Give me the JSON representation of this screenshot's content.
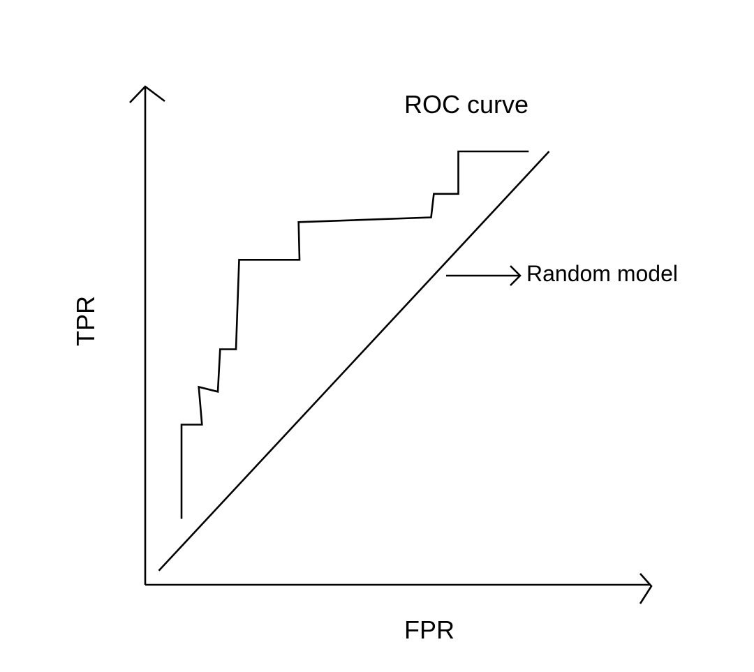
{
  "chart_data": {
    "type": "line",
    "xlabel": "FPR",
    "ylabel": "TPR",
    "xlim": [
      0,
      1
    ],
    "ylim": [
      0,
      1
    ],
    "grid": false,
    "legend": "none",
    "series": [
      {
        "name": "ROC curve",
        "x": [
          0.08,
          0.08,
          0.125,
          0.118,
          0.16,
          0.165,
          0.2,
          0.207,
          0.34,
          0.338,
          0.63,
          0.636,
          0.69,
          0.69,
          0.845
        ],
        "y": [
          0.14,
          0.34,
          0.34,
          0.42,
          0.41,
          0.5,
          0.5,
          0.69,
          0.69,
          0.77,
          0.78,
          0.83,
          0.83,
          0.92,
          0.92
        ]
      },
      {
        "name": "Random model",
        "x": [
          0.03,
          0.89
        ],
        "y": [
          0.03,
          0.92
        ]
      }
    ],
    "annotations": [
      {
        "text": "ROC curve",
        "target": "ROC curve"
      },
      {
        "text": "Random model",
        "target": "Random model",
        "arrow": true
      }
    ],
    "colors": {
      "line": "#000000",
      "background": "#ffffff"
    }
  }
}
